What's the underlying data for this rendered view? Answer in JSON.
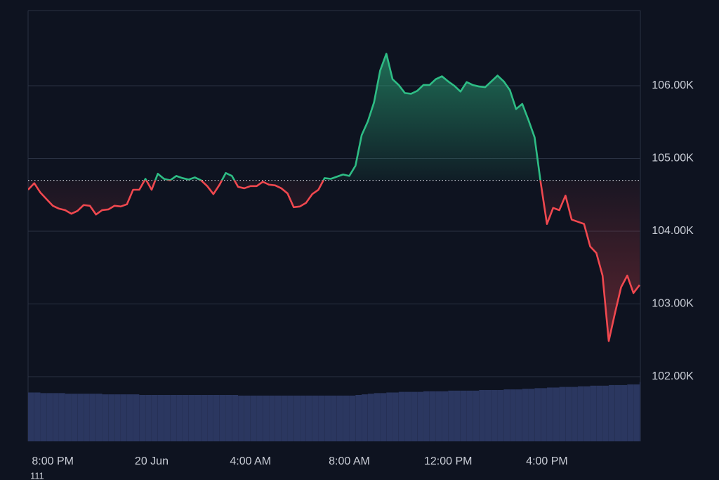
{
  "chart_data": {
    "type": "baseline",
    "x": [
      19,
      19.25,
      19.5,
      19.75,
      20,
      20.25,
      20.5,
      20.75,
      21,
      21.25,
      21.5,
      21.75,
      22,
      22.25,
      22.5,
      22.75,
      23,
      23.25,
      23.5,
      23.75,
      24,
      24.25,
      24.5,
      24.75,
      25,
      25.25,
      25.5,
      25.75,
      26,
      26.25,
      26.5,
      26.75,
      27,
      27.25,
      27.5,
      27.75,
      28,
      28.25,
      28.5,
      28.75,
      29,
      29.25,
      29.5,
      29.75,
      30,
      30.25,
      30.5,
      30.75,
      31,
      31.25,
      31.5,
      31.75,
      32,
      32.25,
      32.5,
      32.75,
      33,
      33.25,
      33.5,
      33.75,
      34,
      34.25,
      34.5,
      34.75,
      35,
      35.25,
      35.5,
      35.75,
      36,
      36.25,
      36.5,
      36.75,
      37,
      37.25,
      37.5,
      37.75,
      38,
      38.25,
      38.5,
      38.75,
      39,
      39.25,
      39.5,
      39.75,
      40,
      40.25,
      40.5,
      40.75,
      41,
      41.25,
      41.5,
      41.75,
      42,
      42.25,
      42.5,
      42.75,
      43,
      43.25,
      43.5,
      43.75
    ],
    "series": [
      {
        "up_color": "#2ebd85",
        "down_color": "#f0484f",
        "values": [
          104570,
          104660,
          104530,
          104440,
          104350,
          104310,
          104290,
          104240,
          104280,
          104360,
          104350,
          104230,
          104290,
          104300,
          104350,
          104340,
          104370,
          104570,
          104570,
          104720,
          104570,
          104790,
          104720,
          104700,
          104760,
          104730,
          104710,
          104740,
          104700,
          104620,
          104510,
          104640,
          104800,
          104760,
          104610,
          104590,
          104620,
          104620,
          104680,
          104640,
          104630,
          104590,
          104520,
          104330,
          104340,
          104390,
          104510,
          104570,
          104730,
          104720,
          104750,
          104780,
          104760,
          104900,
          105320,
          105510,
          105770,
          106210,
          106440,
          106090,
          106010,
          105900,
          105890,
          105930,
          106010,
          106010,
          106090,
          106130,
          106060,
          106000,
          105920,
          106050,
          106010,
          105990,
          105980,
          106060,
          106140,
          106060,
          105940,
          105680,
          105750,
          105530,
          105290,
          104660,
          104100,
          104320,
          104290,
          104490,
          104160,
          104130,
          104100,
          103790,
          103700,
          103390,
          102490,
          102870,
          103230,
          103390,
          103150,
          103260
        ]
      },
      {
        "axis": "y2",
        "color": "#2b3760",
        "values": [
          79,
          79,
          78,
          78,
          78,
          78,
          77,
          77,
          77,
          77,
          77,
          77,
          76,
          76,
          76,
          76,
          76,
          76,
          75,
          75,
          75,
          75,
          75,
          75,
          75,
          75,
          75,
          75,
          75,
          75,
          75,
          75,
          75,
          75,
          74,
          74,
          74,
          74,
          74,
          74,
          74,
          74,
          74,
          74,
          74,
          74,
          74,
          74,
          74,
          74,
          74,
          74,
          74,
          75,
          76,
          77,
          78,
          78,
          79,
          79,
          80,
          80,
          80,
          80,
          81,
          81,
          81,
          81,
          82,
          82,
          82,
          82,
          82,
          83,
          83,
          83,
          83,
          84,
          84,
          84,
          85,
          85,
          86,
          86,
          87,
          87,
          88,
          88,
          88,
          89,
          89,
          90,
          90,
          90,
          91,
          91,
          91,
          92,
          92,
          96
        ]
      }
    ],
    "baseline": 104700,
    "xlim": [
      19,
      43.78
    ],
    "xticks": [
      {
        "value": 20,
        "label": "8:00 PM"
      },
      {
        "value": 24,
        "label": "20 Jun"
      },
      {
        "value": 28,
        "label": "4:00 AM"
      },
      {
        "value": 32,
        "label": "8:00 AM"
      },
      {
        "value": 36,
        "label": "12:00 PM"
      },
      {
        "value": 40,
        "label": "4:00 PM"
      }
    ],
    "ylim": [
      101111,
      107034
    ],
    "yticks": [
      {
        "value": 102000,
        "label": "102.00K"
      },
      {
        "value": 103000,
        "label": "103.00K"
      },
      {
        "value": 104000,
        "label": "104.00K"
      },
      {
        "value": 105000,
        "label": "105.00K"
      },
      {
        "value": 106000,
        "label": "106.00K"
      }
    ],
    "y2lim": [
      0,
      100
    ],
    "grid": true,
    "stray_label": "111"
  }
}
